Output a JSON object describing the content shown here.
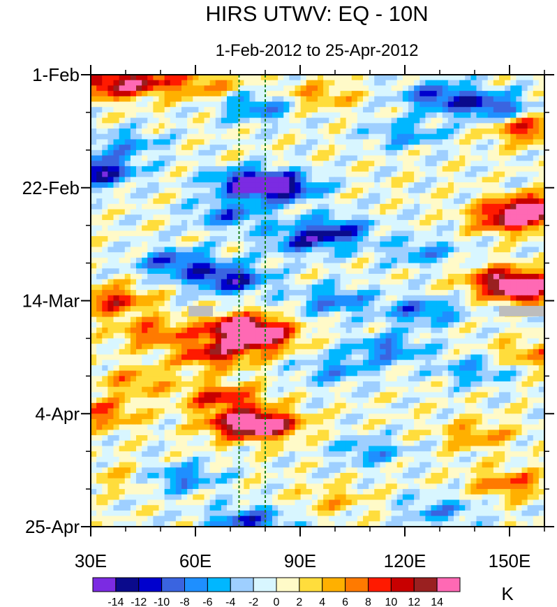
{
  "chart_data": {
    "type": "heatmap",
    "title": "HIRS UTWV: EQ - 10N",
    "subtitle": "1-Feb-2012 to 25-Apr-2012",
    "x_ticks": [
      {
        "value": 30,
        "label": "30E"
      },
      {
        "value": 60,
        "label": "60E"
      },
      {
        "value": 90,
        "label": "90E"
      },
      {
        "value": 120,
        "label": "120E"
      },
      {
        "value": 150,
        "label": "150E"
      }
    ],
    "xlim": [
      30,
      160
    ],
    "y_ticks": [
      {
        "value": "2012-02-01",
        "label": "1-Feb"
      },
      {
        "value": "2012-02-22",
        "label": "22-Feb"
      },
      {
        "value": "2012-03-14",
        "label": "14-Mar"
      },
      {
        "value": "2012-04-04",
        "label": "4-Apr"
      },
      {
        "value": "2012-04-25",
        "label": "25-Apr"
      }
    ],
    "ylim": [
      "2012-02-01",
      "2012-04-25"
    ],
    "reference_lines_x": [
      72.5,
      80
    ],
    "reference_line_color": "#1a7f1a",
    "colorbar": {
      "unit": "K",
      "labels": [
        "-14",
        "-12",
        "-10",
        "-8",
        "-6",
        "-4",
        "-2",
        "0",
        "2",
        "4",
        "6",
        "8",
        "10",
        "12",
        "14"
      ],
      "colors": [
        "#7b2be2",
        "#0a0a8c",
        "#0000cd",
        "#3a64e0",
        "#1e8fff",
        "#00b7ff",
        "#9ecfff",
        "#d8f6ff",
        "#fffac8",
        "#ffdd3c",
        "#ffb000",
        "#ff7a00",
        "#ff1a00",
        "#c80000",
        "#9a2020",
        "#ff69b4"
      ]
    },
    "anomaly_events": [
      {
        "lon": 35,
        "date": "2012-02-03",
        "value": 10
      },
      {
        "lon": 45,
        "date": "2012-02-02",
        "value": 8
      },
      {
        "lon": 62,
        "date": "2012-02-03",
        "value": 6
      },
      {
        "lon": 36,
        "date": "2012-03-14",
        "value": 10
      },
      {
        "lon": 48,
        "date": "2012-03-20",
        "value": 8
      },
      {
        "lon": 73,
        "date": "2012-03-19",
        "value": 14
      },
      {
        "lon": 78,
        "date": "2012-03-21",
        "value": 12
      },
      {
        "lon": 65,
        "date": "2012-03-24",
        "value": 10
      },
      {
        "lon": 43,
        "date": "2012-03-29",
        "value": 6
      },
      {
        "lon": 74,
        "date": "2012-04-06",
        "value": 14
      },
      {
        "lon": 68,
        "date": "2012-04-01",
        "value": 10
      },
      {
        "lon": 82,
        "date": "2012-04-06",
        "value": 8
      },
      {
        "lon": 33,
        "date": "2012-04-04",
        "value": 8
      },
      {
        "lon": 95,
        "date": "2012-02-05",
        "value": 6
      },
      {
        "lon": 156,
        "date": "2012-02-11",
        "value": 10
      },
      {
        "lon": 156,
        "date": "2012-02-26",
        "value": 14
      },
      {
        "lon": 150,
        "date": "2012-02-28",
        "value": 10
      },
      {
        "lon": 155,
        "date": "2012-03-12",
        "value": 14
      },
      {
        "lon": 148,
        "date": "2012-03-10",
        "value": 10
      },
      {
        "lon": 150,
        "date": "2012-04-17",
        "value": 8
      },
      {
        "lon": 140,
        "date": "2012-04-08",
        "value": 6
      },
      {
        "lon": 156,
        "date": "2012-03-24",
        "value": 6
      },
      {
        "lon": 100,
        "date": "2012-04-20",
        "value": 4
      },
      {
        "lon": 40,
        "date": "2012-04-16",
        "value": 4
      },
      {
        "lon": 78,
        "date": "2012-02-07",
        "value": -8
      },
      {
        "lon": 75,
        "date": "2012-02-21",
        "value": -12
      },
      {
        "lon": 85,
        "date": "2012-02-22",
        "value": -12
      },
      {
        "lon": 70,
        "date": "2012-02-27",
        "value": -8
      },
      {
        "lon": 90,
        "date": "2012-03-03",
        "value": -8
      },
      {
        "lon": 100,
        "date": "2012-03-01",
        "value": -10
      },
      {
        "lon": 70,
        "date": "2012-03-10",
        "value": -12
      },
      {
        "lon": 55,
        "date": "2012-03-07",
        "value": -10
      },
      {
        "lon": 100,
        "date": "2012-03-14",
        "value": -8
      },
      {
        "lon": 115,
        "date": "2012-03-23",
        "value": -8
      },
      {
        "lon": 125,
        "date": "2012-03-16",
        "value": -8
      },
      {
        "lon": 130,
        "date": "2012-02-05",
        "value": -10
      },
      {
        "lon": 145,
        "date": "2012-02-07",
        "value": -10
      },
      {
        "lon": 120,
        "date": "2012-02-12",
        "value": -6
      },
      {
        "lon": 125,
        "date": "2012-03-05",
        "value": -6
      },
      {
        "lon": 31,
        "date": "2012-02-19",
        "value": -14
      },
      {
        "lon": 140,
        "date": "2012-03-27",
        "value": -6
      },
      {
        "lon": 100,
        "date": "2012-03-27",
        "value": -6
      },
      {
        "lon": 110,
        "date": "2012-04-11",
        "value": -6
      },
      {
        "lon": 55,
        "date": "2012-04-16",
        "value": -8
      },
      {
        "lon": 75,
        "date": "2012-04-24",
        "value": -10
      },
      {
        "lon": 130,
        "date": "2012-04-22",
        "value": -6
      },
      {
        "lon": 40,
        "date": "2012-02-14",
        "value": -6
      }
    ],
    "missing_data": [
      {
        "lon_from": 58,
        "lon_to": 65,
        "date": "2012-03-16"
      },
      {
        "lon_from": 147,
        "lon_to": 160,
        "date": "2012-03-16"
      }
    ]
  }
}
